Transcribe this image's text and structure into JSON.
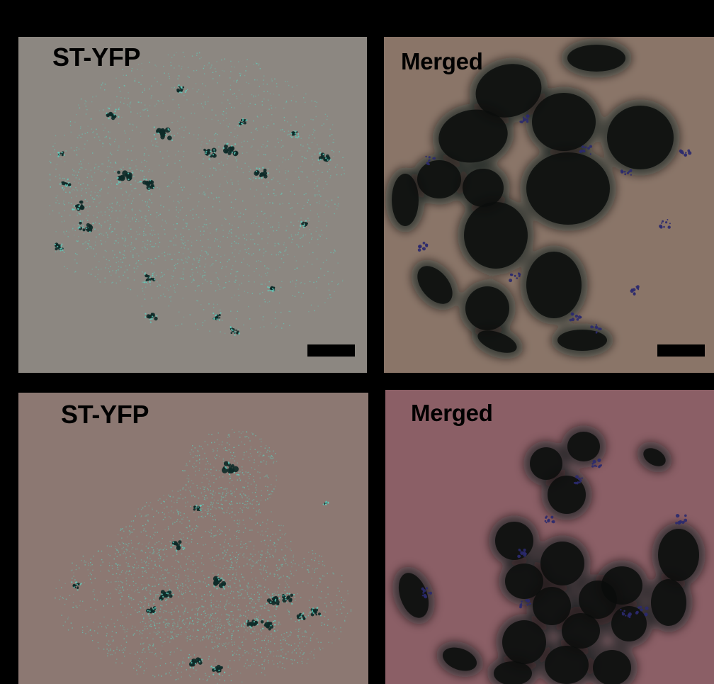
{
  "figure": {
    "panels": [
      {
        "id": "top-left",
        "label": "ST-YFP",
        "background": "#8c8781",
        "scale_bar": true
      },
      {
        "id": "top-right",
        "label": "Merged",
        "background": "#8a7568",
        "scale_bar": true
      },
      {
        "id": "bottom-left",
        "label": "ST-YFP",
        "background": "#8c7872",
        "scale_bar": false
      },
      {
        "id": "bottom-right",
        "label": "Merged",
        "background": "#8b5f66",
        "scale_bar": false
      }
    ],
    "colors": {
      "divider": "#000000",
      "stfp_speckle": "#5fd1c0",
      "golgi_dark": "#0d2a28",
      "cell_dark": "#0b0d0c",
      "merged_dot": "#2b2a6e"
    }
  }
}
